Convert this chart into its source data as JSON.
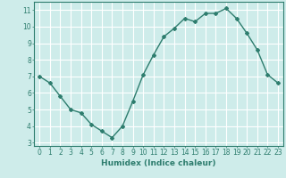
{
  "x": [
    0,
    1,
    2,
    3,
    4,
    5,
    6,
    7,
    8,
    9,
    10,
    11,
    12,
    13,
    14,
    15,
    16,
    17,
    18,
    19,
    20,
    21,
    22,
    23
  ],
  "y": [
    7.0,
    6.6,
    5.8,
    5.0,
    4.8,
    4.1,
    3.7,
    3.3,
    4.0,
    5.5,
    7.1,
    8.3,
    9.4,
    9.9,
    10.5,
    10.3,
    10.8,
    10.8,
    11.1,
    10.5,
    9.6,
    8.6,
    7.1,
    6.6
  ],
  "line_color": "#2e7d6e",
  "marker": "D",
  "marker_size": 2.0,
  "linewidth": 1.0,
  "xlabel": "Humidex (Indice chaleur)",
  "xlabel_fontsize": 6.5,
  "xlabel_fontweight": "bold",
  "bg_color": "#ceecea",
  "grid_color": "#ffffff",
  "tick_color": "#2e7d6e",
  "xlim": [
    -0.5,
    23.5
  ],
  "ylim": [
    2.8,
    11.5
  ],
  "yticks": [
    3,
    4,
    5,
    6,
    7,
    8,
    9,
    10,
    11
  ],
  "xtick_labels": [
    "0",
    "1",
    "2",
    "3",
    "4",
    "5",
    "6",
    "7",
    "8",
    "9",
    "10",
    "11",
    "12",
    "13",
    "14",
    "15",
    "16",
    "17",
    "18",
    "19",
    "20",
    "21",
    "22",
    "23"
  ],
  "tick_fontsize": 5.5
}
